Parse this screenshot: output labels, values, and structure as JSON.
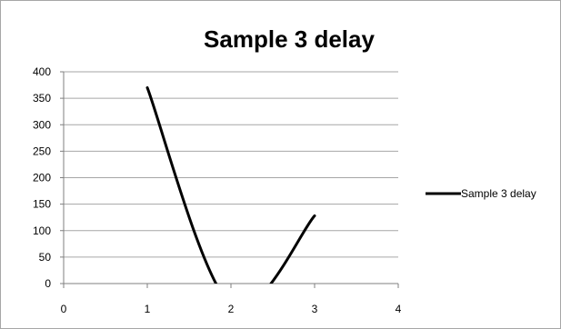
{
  "chart_data": {
    "type": "line",
    "title": "Sample 3 delay",
    "xlabel": "",
    "ylabel": "",
    "x": [
      1,
      2,
      3
    ],
    "series": [
      {
        "name": "Sample 3 delay",
        "values": [
          370,
          -40,
          128
        ],
        "color": "#000000"
      }
    ],
    "xlim": [
      0,
      4
    ],
    "ylim": [
      0,
      400
    ],
    "xticks": [
      "0",
      "1",
      "2",
      "3",
      "4"
    ],
    "yticks": [
      "0",
      "50",
      "100",
      "150",
      "200",
      "250",
      "300",
      "350",
      "400"
    ],
    "grid": "horizontal",
    "smooth": true,
    "legend_position": "right",
    "colors": {
      "gridline": "#a6a6a6",
      "axis": "#7f7f7f",
      "line": "#000000"
    }
  }
}
